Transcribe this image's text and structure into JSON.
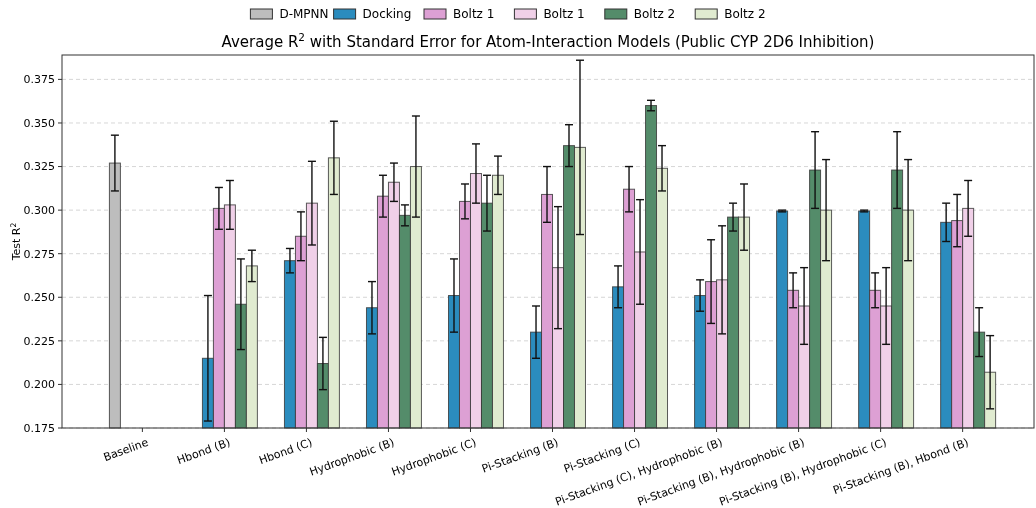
{
  "chart_data": {
    "type": "bar",
    "title": "Average R$^{2}$ with Standard Error for Atom-Interaction Models (Public CYP 2D6 Inhibition)",
    "ylabel": "Test R$^{2}$",
    "categories": [
      "Baseline",
      "Hbond (B)",
      "Hbond (C)",
      "Hydrophobic (B)",
      "Hydrophobic (C)",
      "Pi-Stacking (B)",
      "Pi-Stacking (C)",
      "Pi-Stacking (C), Hydrophobic (B)",
      "Pi-Stacking (B), Hydrophobic (B)",
      "Pi-Stacking (B), Hydrophobic (C)",
      "Pi-Stacking (B), Hbond (B)"
    ],
    "series": [
      {
        "name": "D-MPNN",
        "color": "#bdbdbd",
        "values": [
          0.327,
          null,
          null,
          null,
          null,
          null,
          null,
          null,
          null,
          null,
          null
        ],
        "errors": [
          0.016,
          null,
          null,
          null,
          null,
          null,
          null,
          null,
          null,
          null,
          null
        ]
      },
      {
        "name": "Docking",
        "color": "#2b8cbe",
        "values": [
          null,
          0.215,
          0.271,
          0.244,
          0.251,
          0.23,
          0.256,
          0.251,
          0.2995,
          0.2995,
          0.293
        ],
        "errors": [
          null,
          0.036,
          0.007,
          0.015,
          0.021,
          0.015,
          0.012,
          0.009,
          0.0005,
          0.0005,
          0.011
        ]
      },
      {
        "name": "Boltz 1",
        "color": "#dda0d4",
        "values": [
          null,
          0.301,
          0.285,
          0.308,
          0.305,
          0.309,
          0.312,
          0.259,
          0.254,
          0.254,
          0.294
        ],
        "errors": [
          null,
          0.012,
          0.014,
          0.012,
          0.01,
          0.016,
          0.013,
          0.024,
          0.01,
          0.01,
          0.015
        ]
      },
      {
        "name": "Boltz 1",
        "color": "#f0d0e8",
        "values": [
          null,
          0.303,
          0.304,
          0.316,
          0.321,
          0.267,
          0.276,
          0.26,
          0.245,
          0.245,
          0.301
        ],
        "errors": [
          null,
          0.014,
          0.024,
          0.011,
          0.017,
          0.035,
          0.03,
          0.031,
          0.022,
          0.022,
          0.016
        ]
      },
      {
        "name": "Boltz 2",
        "color": "#548c6a",
        "values": [
          null,
          0.246,
          0.212,
          0.297,
          0.304,
          0.337,
          0.36,
          0.296,
          0.323,
          0.323,
          0.23
        ],
        "errors": [
          null,
          0.026,
          0.015,
          0.006,
          0.016,
          0.012,
          0.003,
          0.008,
          0.022,
          0.022,
          0.014
        ]
      },
      {
        "name": "Boltz 2",
        "color": "#e0ebd0",
        "values": [
          null,
          0.268,
          0.33,
          0.325,
          0.32,
          0.336,
          0.324,
          0.296,
          0.3,
          0.3,
          0.207
        ],
        "errors": [
          null,
          0.009,
          0.021,
          0.029,
          0.011,
          0.05,
          0.013,
          0.019,
          0.029,
          0.029,
          0.021
        ]
      }
    ],
    "ylim": [
      0.175,
      0.389
    ],
    "yticks": [
      0.175,
      {
        "value": 0.2,
        "label": "0.200"
      },
      0.225,
      {
        "value": 0.25,
        "label": "0.250"
      },
      0.275,
      {
        "value": 0.3,
        "label": "0.300"
      },
      0.325,
      {
        "value": 0.35,
        "label": "0.350"
      },
      0.375
    ],
    "grid": "y",
    "legend": "top"
  }
}
